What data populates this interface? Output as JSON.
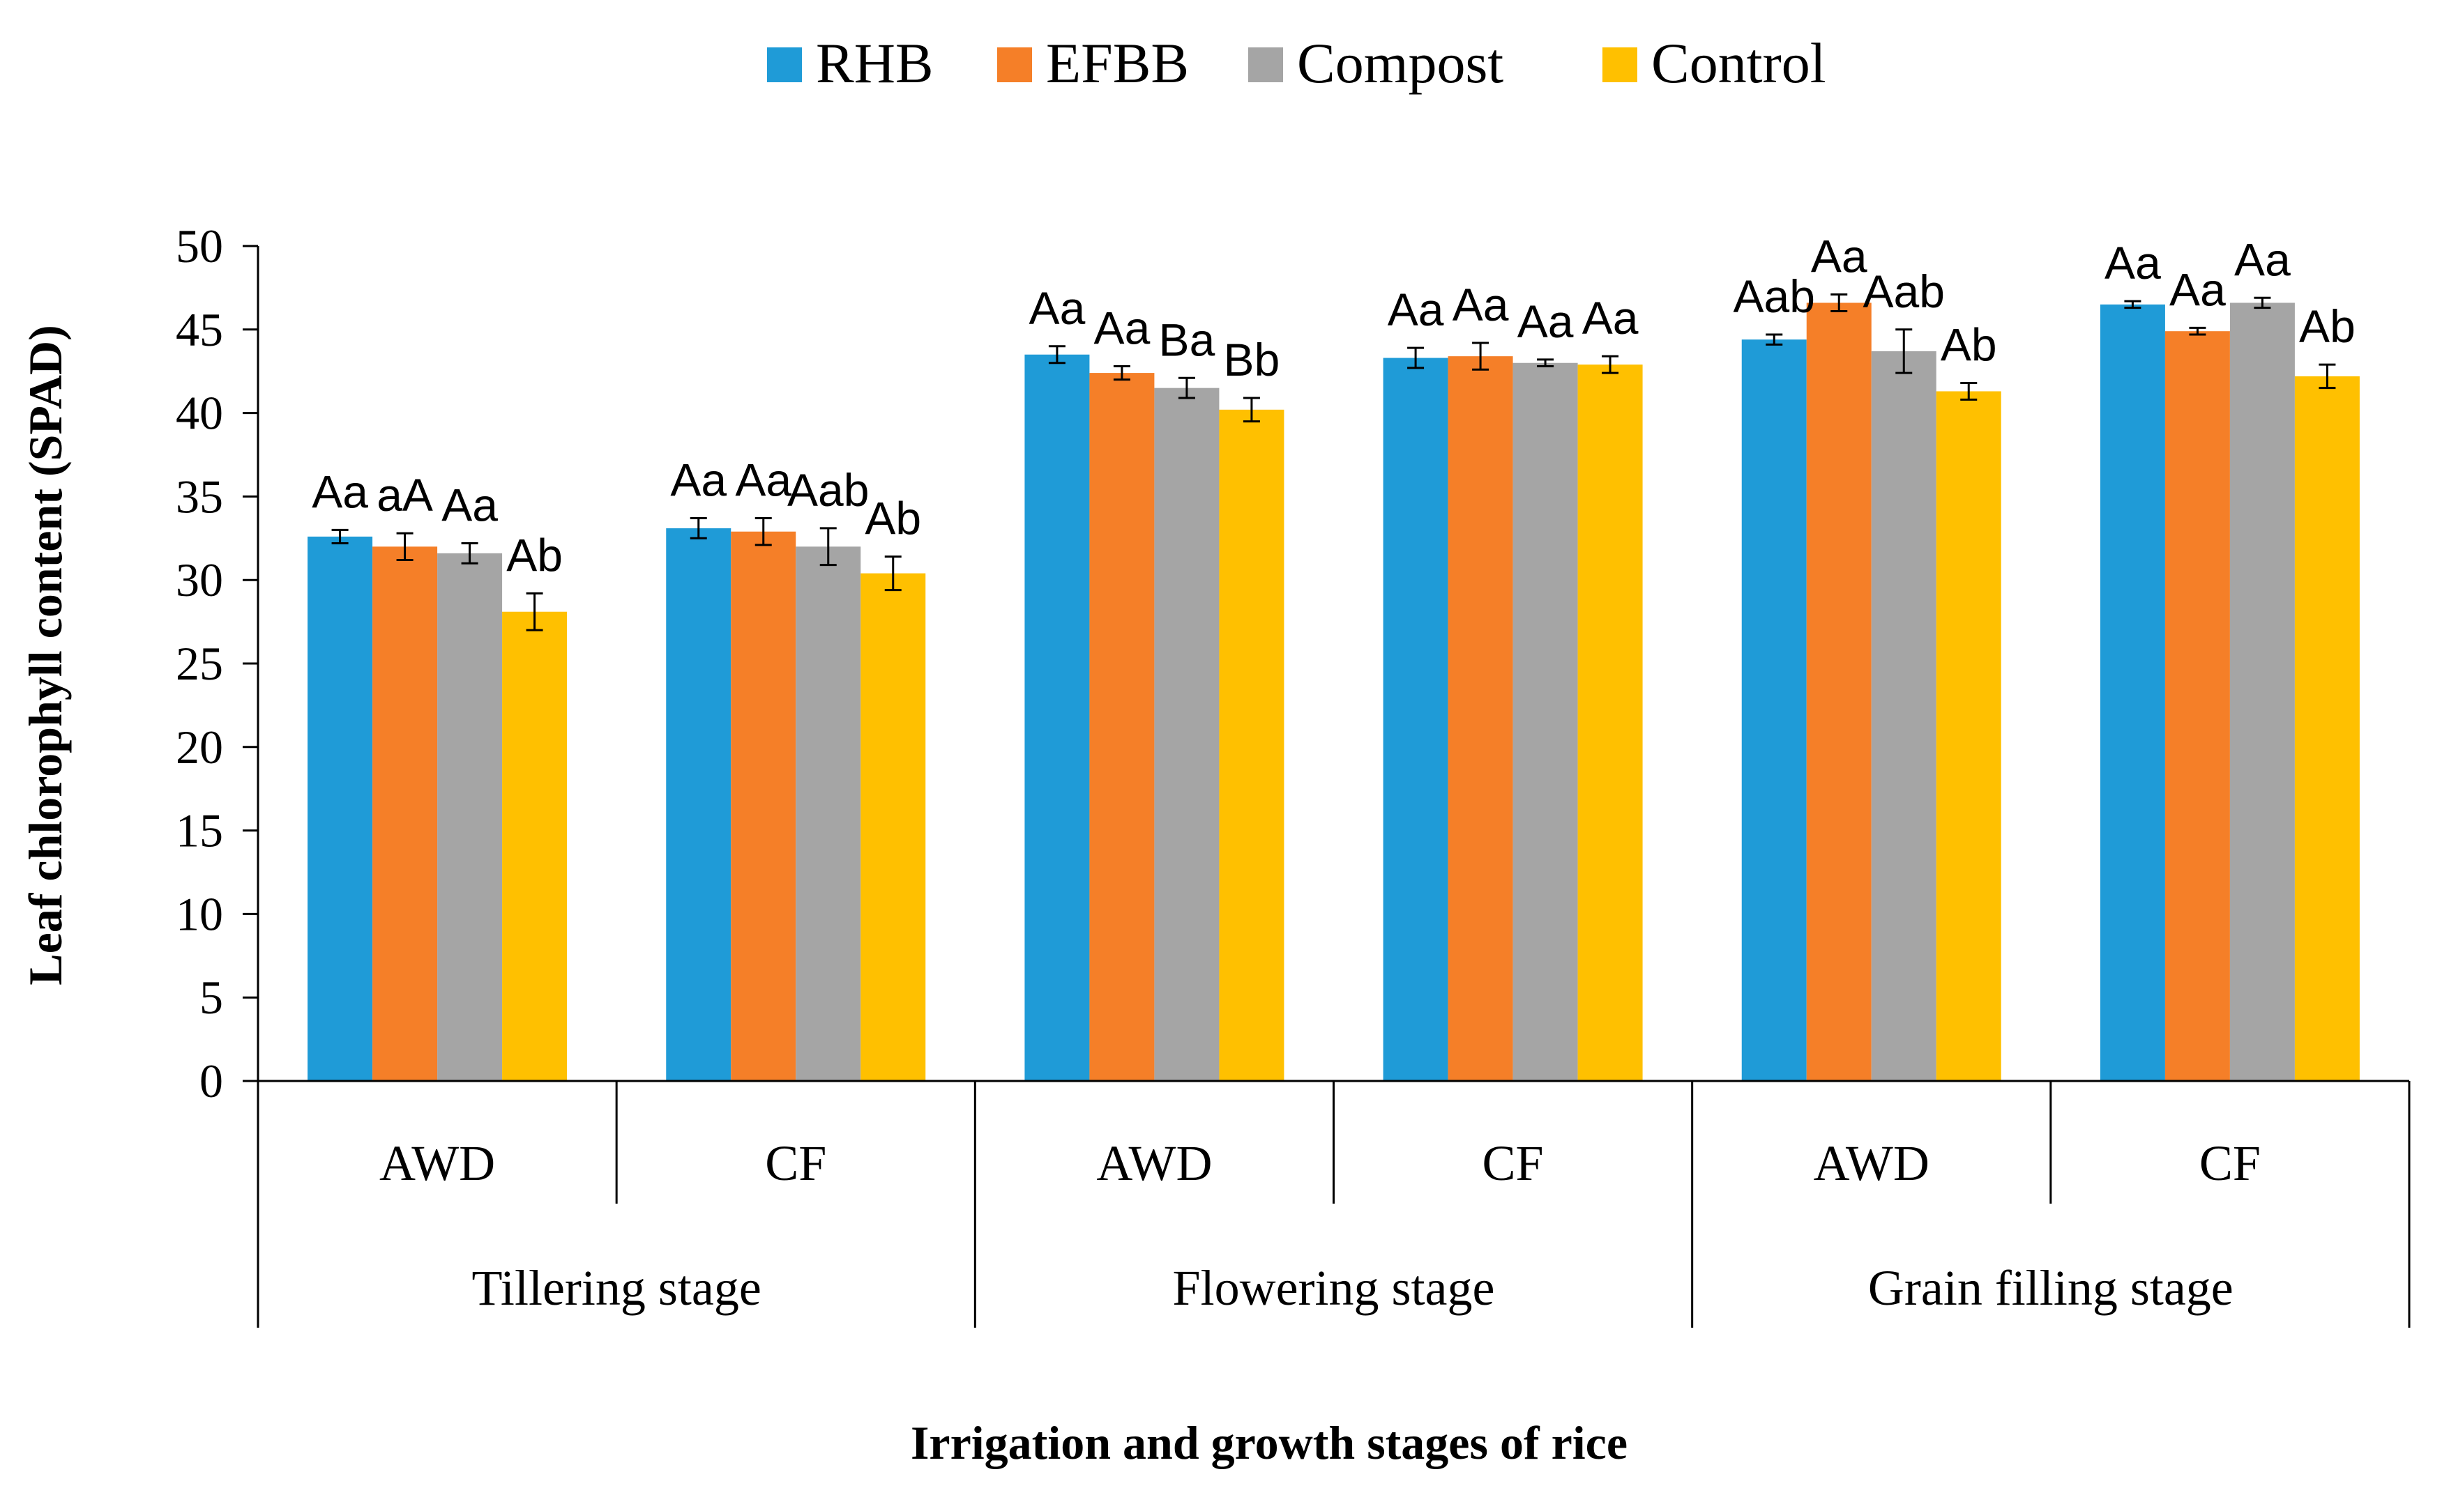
{
  "chart_data": {
    "type": "bar",
    "title": "",
    "xlabel": "Irrigation and growth stages of rice",
    "ylabel": "Leaf chlorophyll content (SPAD)",
    "ylim": [
      0,
      50
    ],
    "yticks": [
      0,
      5,
      10,
      15,
      20,
      25,
      30,
      35,
      40,
      45,
      50
    ],
    "grid": false,
    "legend_position": "top-center",
    "groups": [
      "Tillering stage",
      "Flowering stage",
      "Grain filling stage"
    ],
    "categories": [
      "AWD",
      "CF",
      "AWD",
      "CF",
      "AWD",
      "CF"
    ],
    "series": [
      {
        "name": "RHB",
        "color": "#1f9bd7",
        "values": [
          32.6,
          33.1,
          43.5,
          43.3,
          44.4,
          46.5
        ],
        "errors": [
          0.4,
          0.6,
          0.5,
          0.6,
          0.3,
          0.2
        ],
        "labels": [
          "Aa",
          "Aa",
          "Aa",
          "Aa",
          "Aab",
          "Aa"
        ]
      },
      {
        "name": "EFBB",
        "color": "#f57f28",
        "values": [
          32.0,
          32.9,
          42.4,
          43.4,
          46.6,
          44.9
        ],
        "errors": [
          0.8,
          0.8,
          0.4,
          0.8,
          0.5,
          0.2
        ],
        "labels": [
          "aA",
          "Aa",
          "Aa",
          "Aa",
          "Aa",
          "Aa"
        ]
      },
      {
        "name": "Compost",
        "color": "#a5a5a5",
        "values": [
          31.6,
          32.0,
          41.5,
          43.0,
          43.7,
          46.6
        ],
        "errors": [
          0.6,
          1.1,
          0.6,
          0.2,
          1.3,
          0.3
        ],
        "labels": [
          "Aa",
          "Aab",
          "Ba",
          "Aa",
          "Aab",
          "Aa"
        ]
      },
      {
        "name": "Control",
        "color": "#ffc000",
        "values": [
          28.1,
          30.4,
          40.2,
          42.9,
          41.3,
          42.2
        ],
        "errors": [
          1.1,
          1.0,
          0.7,
          0.5,
          0.5,
          0.7
        ],
        "labels": [
          "Ab",
          "Ab",
          "Bb",
          "Aa",
          "Ab",
          "Ab"
        ]
      }
    ]
  }
}
